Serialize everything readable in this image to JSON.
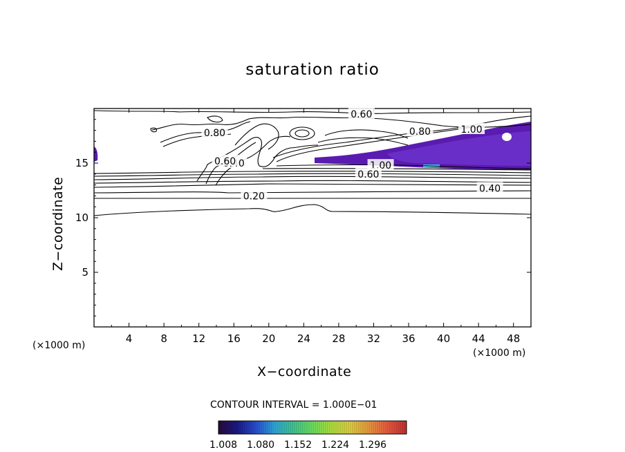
{
  "chart_data": {
    "type": "contour",
    "title": "saturation ratio",
    "xlabel": "X−coordinate",
    "ylabel": "Z−coordinate",
    "x_unit_left": "(×1000 m)",
    "x_unit_right": "(×1000 m)",
    "xlim": [
      0,
      50
    ],
    "ylim": [
      0,
      20
    ],
    "x_ticks": [
      4,
      8,
      12,
      16,
      20,
      24,
      28,
      32,
      36,
      40,
      44,
      48
    ],
    "y_ticks": [
      5,
      10,
      15
    ],
    "contour_interval_text": "CONTOUR INTERVAL = 1.000E−01",
    "contour_labels": [
      {
        "text": "0.60",
        "x": 30.6,
        "z": 19.5
      },
      {
        "text": "0.80",
        "x": 13.8,
        "z": 17.8
      },
      {
        "text": "0.80",
        "x": 37.3,
        "z": 17.9
      },
      {
        "text": "1.00",
        "x": 43.2,
        "z": 18.1
      },
      {
        "text": "0.40",
        "x": 16.0,
        "z": 15.0
      },
      {
        "text": "0.60",
        "x": 15.0,
        "z": 15.2
      },
      {
        "text": "1.00",
        "x": 32.8,
        "z": 14.8
      },
      {
        "text": "0.60",
        "x": 31.4,
        "z": 14.0
      },
      {
        "text": "0.40",
        "x": 45.3,
        "z": 12.7
      },
      {
        "text": "0.20",
        "x": 18.3,
        "z": 12.0
      }
    ],
    "supersaturated_region": {
      "description_level": 1.0,
      "x_range": [
        23.5,
        50
      ],
      "z_range": [
        14.3,
        18.7
      ]
    },
    "colorbar": {
      "colors": [
        "#2a0a3a",
        "#1a1a8c",
        "#2a4fd0",
        "#30a8d8",
        "#40c890",
        "#6ce060",
        "#b0e040",
        "#e0d040",
        "#e89a40",
        "#e85a40",
        "#c83030"
      ],
      "tick_labels": [
        "1.008",
        "1.080",
        "1.152",
        "1.224",
        "1.296"
      ]
    },
    "fill_colors": {
      "deep": "#5a1bb0",
      "mid": "#6a2ec8",
      "light": "#7a3ad8",
      "cyan": "#3fd0e8"
    }
  }
}
